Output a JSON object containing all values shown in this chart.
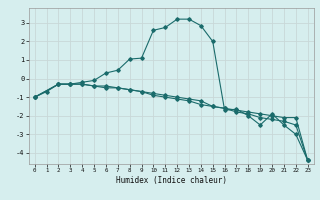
{
  "title": "",
  "xlabel": "Humidex (Indice chaleur)",
  "ylabel": "",
  "bg_color": "#d6eeee",
  "grid_color": "#c8d8d8",
  "line_color": "#1a6b6b",
  "xlim": [
    -0.5,
    23.5
  ],
  "ylim": [
    -4.6,
    3.8
  ],
  "xticks": [
    0,
    1,
    2,
    3,
    4,
    5,
    6,
    7,
    8,
    9,
    10,
    11,
    12,
    13,
    14,
    15,
    16,
    17,
    18,
    19,
    20,
    21,
    22,
    23
  ],
  "yticks": [
    -4,
    -3,
    -2,
    -1,
    0,
    1,
    2,
    3
  ],
  "line1_x": [
    0,
    1,
    2,
    3,
    4,
    5,
    6,
    7,
    8,
    9,
    10,
    11,
    12,
    13,
    14,
    15,
    16,
    17,
    18,
    19,
    20,
    21,
    22,
    23
  ],
  "line1_y": [
    -1.0,
    -0.7,
    -0.3,
    -0.3,
    -0.2,
    -0.1,
    0.3,
    0.45,
    1.05,
    1.1,
    2.6,
    2.75,
    3.2,
    3.2,
    2.85,
    2.0,
    -1.7,
    -1.65,
    -2.0,
    -2.5,
    -1.9,
    -2.5,
    -3.0,
    -4.4
  ],
  "line2_x": [
    0,
    2,
    3,
    4,
    5,
    6,
    7,
    8,
    9,
    10,
    11,
    12,
    13,
    14,
    15,
    16,
    17,
    18,
    19,
    20,
    21,
    22,
    23
  ],
  "line2_y": [
    -1.0,
    -0.3,
    -0.3,
    -0.3,
    -0.4,
    -0.5,
    -0.5,
    -0.6,
    -0.7,
    -0.9,
    -1.0,
    -1.1,
    -1.2,
    -1.4,
    -1.5,
    -1.6,
    -1.8,
    -1.9,
    -2.1,
    -2.2,
    -2.3,
    -2.5,
    -4.4
  ],
  "line3_x": [
    0,
    2,
    3,
    4,
    5,
    6,
    7,
    8,
    9,
    10,
    11,
    12,
    13,
    14,
    15,
    16,
    17,
    18,
    19,
    20,
    21,
    22,
    23
  ],
  "line3_y": [
    -1.0,
    -0.3,
    -0.3,
    -0.3,
    -0.4,
    -0.4,
    -0.5,
    -0.6,
    -0.7,
    -0.8,
    -0.9,
    -1.0,
    -1.1,
    -1.2,
    -1.5,
    -1.6,
    -1.7,
    -1.8,
    -1.9,
    -2.0,
    -2.1,
    -2.1,
    -4.4
  ]
}
